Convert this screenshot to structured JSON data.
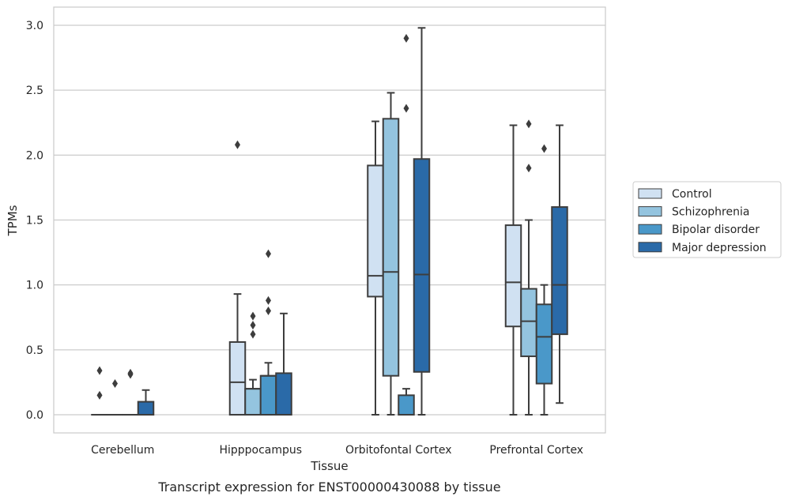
{
  "chart_data": {
    "type": "box",
    "title": "",
    "caption": "Transcript expression for ENST00000430088 by tissue",
    "xlabel": "Tissue",
    "ylabel": "TPMs",
    "ylim": [
      -0.14,
      3.14
    ],
    "yticks": [
      0.0,
      0.5,
      1.0,
      1.5,
      2.0,
      2.5,
      3.0
    ],
    "ytick_labels": [
      "0.0",
      "0.5",
      "1.0",
      "1.5",
      "2.0",
      "2.5",
      "3.0"
    ],
    "grid": "horizontal",
    "legend_position": "right",
    "categories": [
      "Cerebellum",
      "Hipppocampus",
      "Orbitofontal Cortex",
      "Prefrontal Cortex"
    ],
    "series": [
      {
        "name": "Control",
        "color": "#d0e1f2",
        "boxes": [
          {
            "whisker_low": 0.0,
            "q1": 0.0,
            "median": 0.0,
            "q3": 0.0,
            "whisker_high": 0.0,
            "outliers": [
              0.15,
              0.34
            ]
          },
          {
            "whisker_low": 0.0,
            "q1": 0.0,
            "median": 0.25,
            "q3": 0.56,
            "whisker_high": 0.93,
            "outliers": [
              2.08
            ]
          },
          {
            "whisker_low": 0.0,
            "q1": 0.91,
            "median": 1.07,
            "q3": 1.92,
            "whisker_high": 2.26,
            "outliers": []
          },
          {
            "whisker_low": 0.0,
            "q1": 0.68,
            "median": 1.02,
            "q3": 1.46,
            "whisker_high": 2.23,
            "outliers": []
          }
        ]
      },
      {
        "name": "Schizophrenia",
        "color": "#94c4df",
        "boxes": [
          {
            "whisker_low": 0.0,
            "q1": 0.0,
            "median": 0.0,
            "q3": 0.0,
            "whisker_high": 0.0,
            "outliers": [
              0.24
            ]
          },
          {
            "whisker_low": 0.0,
            "q1": 0.0,
            "median": 0.2,
            "q3": 0.2,
            "whisker_high": 0.27,
            "outliers": [
              0.62,
              0.69,
              0.76
            ]
          },
          {
            "whisker_low": 0.0,
            "q1": 0.3,
            "median": 1.1,
            "q3": 2.28,
            "whisker_high": 2.48,
            "outliers": []
          },
          {
            "whisker_low": 0.0,
            "q1": 0.45,
            "median": 0.72,
            "q3": 0.97,
            "whisker_high": 1.5,
            "outliers": [
              1.9,
              2.24
            ]
          }
        ]
      },
      {
        "name": "Bipolar disorder",
        "color": "#4a98c9",
        "boxes": [
          {
            "whisker_low": 0.0,
            "q1": 0.0,
            "median": 0.0,
            "q3": 0.0,
            "whisker_high": 0.0,
            "outliers": [
              0.31,
              0.32
            ]
          },
          {
            "whisker_low": 0.0,
            "q1": 0.0,
            "median": 0.3,
            "q3": 0.3,
            "whisker_high": 0.4,
            "outliers": [
              0.8,
              0.88,
              1.24
            ]
          },
          {
            "whisker_low": 0.0,
            "q1": 0.0,
            "median": 0.0,
            "q3": 0.15,
            "whisker_high": 0.2,
            "outliers": [
              2.36,
              2.9
            ]
          },
          {
            "whisker_low": 0.0,
            "q1": 0.24,
            "median": 0.6,
            "q3": 0.85,
            "whisker_high": 1.0,
            "outliers": [
              2.05
            ]
          }
        ]
      },
      {
        "name": "Major depression",
        "color": "#2a6aa8",
        "boxes": [
          {
            "whisker_low": 0.0,
            "q1": 0.0,
            "median": 0.0,
            "q3": 0.1,
            "whisker_high": 0.19,
            "outliers": []
          },
          {
            "whisker_low": 0.0,
            "q1": 0.0,
            "median": 0.0,
            "q3": 0.32,
            "whisker_high": 0.78,
            "outliers": []
          },
          {
            "whisker_low": 0.0,
            "q1": 0.33,
            "median": 1.08,
            "q3": 1.97,
            "whisker_high": 2.98,
            "outliers": []
          },
          {
            "whisker_low": 0.09,
            "q1": 0.62,
            "median": 1.0,
            "q3": 1.6,
            "whisker_high": 2.23,
            "outliers": []
          }
        ]
      }
    ]
  }
}
